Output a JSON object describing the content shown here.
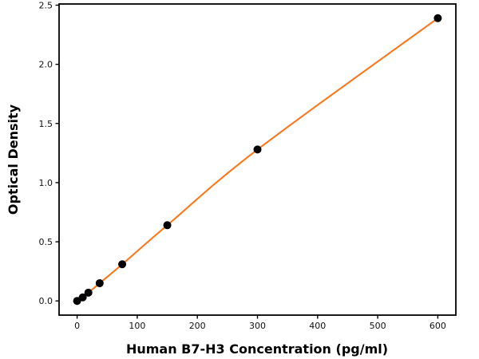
{
  "figure": {
    "background": "#ffffff"
  },
  "chart_data": {
    "type": "line",
    "title": "",
    "xlabel": "Human B7-H3 Concentration (pg/ml)",
    "ylabel": "Optical Density",
    "x": [
      0,
      9.375,
      18.75,
      37.5,
      75,
      150,
      300,
      600
    ],
    "y": [
      0.0,
      0.03,
      0.07,
      0.15,
      0.31,
      0.64,
      1.28,
      2.39
    ],
    "xlim": [
      -30,
      630
    ],
    "ylim": [
      -0.12,
      2.51
    ],
    "xticks": {
      "values": [
        0,
        100,
        200,
        300,
        400,
        500,
        600
      ],
      "labels": [
        "0",
        "100",
        "200",
        "300",
        "400",
        "500",
        "600"
      ]
    },
    "yticks": {
      "values": [
        0.0,
        0.5,
        1.0,
        1.5,
        2.0,
        2.5
      ],
      "labels": [
        "0.0",
        "0.5",
        "1.0",
        "1.5",
        "2.0",
        "2.5"
      ]
    },
    "grid": false,
    "legend": null,
    "line_color": "#ff7312",
    "marker": "circle",
    "marker_color": "#000000",
    "axis_color": "#000000",
    "tick_label_color": "#111111"
  }
}
